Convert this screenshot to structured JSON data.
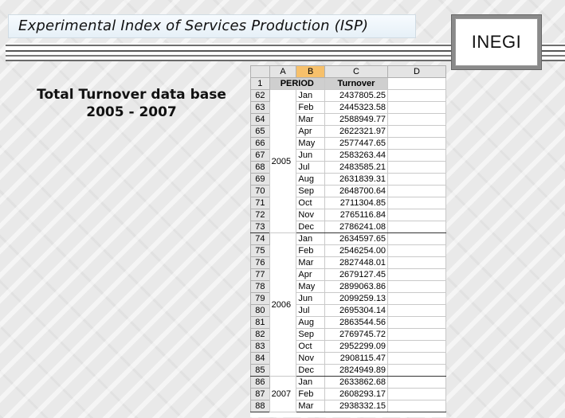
{
  "title": "Experimental Index of Services Production (ISP)",
  "logo": "INEGI",
  "side_title": [
    "Total Turnover data base",
    "2005 - 2007"
  ],
  "sheet": {
    "columns": [
      "A",
      "B",
      "C",
      "D"
    ],
    "header_row_number": "1",
    "header": {
      "period": "PERIOD",
      "turnover": "Turnover"
    },
    "groups": [
      {
        "year": "2005",
        "rows": [
          {
            "n": "62",
            "m": "Jan",
            "v": "2437805.25"
          },
          {
            "n": "63",
            "m": "Feb",
            "v": "2445323.58"
          },
          {
            "n": "64",
            "m": "Mar",
            "v": "2588949.77"
          },
          {
            "n": "65",
            "m": "Apr",
            "v": "2622321.97"
          },
          {
            "n": "66",
            "m": "May",
            "v": "2577447.65"
          },
          {
            "n": "67",
            "m": "Jun",
            "v": "2583263.44"
          },
          {
            "n": "68",
            "m": "Jul",
            "v": "2483585.21"
          },
          {
            "n": "69",
            "m": "Aug",
            "v": "2631839.31"
          },
          {
            "n": "70",
            "m": "Sep",
            "v": "2648700.64"
          },
          {
            "n": "71",
            "m": "Oct",
            "v": "2711304.85"
          },
          {
            "n": "72",
            "m": "Nov",
            "v": "2765116.84"
          },
          {
            "n": "73",
            "m": "Dec",
            "v": "2786241.08"
          }
        ]
      },
      {
        "year": "2006",
        "rows": [
          {
            "n": "74",
            "m": "Jan",
            "v": "2634597.65"
          },
          {
            "n": "75",
            "m": "Feb",
            "v": "2546254.00"
          },
          {
            "n": "76",
            "m": "Mar",
            "v": "2827448.01"
          },
          {
            "n": "77",
            "m": "Apr",
            "v": "2679127.45"
          },
          {
            "n": "78",
            "m": "May",
            "v": "2899063.86"
          },
          {
            "n": "79",
            "m": "Jun",
            "v": "2099259.13"
          },
          {
            "n": "80",
            "m": "Jul",
            "v": "2695304.14"
          },
          {
            "n": "81",
            "m": "Aug",
            "v": "2863544.56"
          },
          {
            "n": "82",
            "m": "Sep",
            "v": "2769745.72"
          },
          {
            "n": "83",
            "m": "Oct",
            "v": "2952299.09"
          },
          {
            "n": "84",
            "m": "Nov",
            "v": "2908115.47"
          },
          {
            "n": "85",
            "m": "Dec",
            "v": "2824949.89"
          }
        ]
      },
      {
        "year": "2007",
        "rows": [
          {
            "n": "86",
            "m": "Jan",
            "v": "2633862.68"
          },
          {
            "n": "87",
            "m": "Feb",
            "v": "2608293.17"
          },
          {
            "n": "88",
            "m": "Mar",
            "v": "2938332.15"
          }
        ]
      }
    ]
  }
}
